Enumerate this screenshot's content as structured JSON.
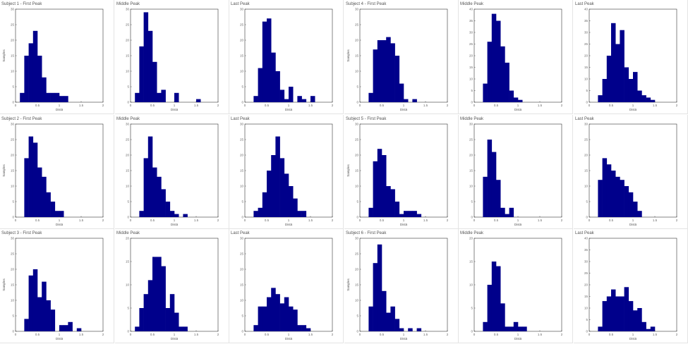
{
  "chart_data": [
    {
      "type": "bar",
      "title": "Subject 1 - First Peak",
      "xlabel": "Distä",
      "ylabel": "Samples",
      "xlim": [
        0,
        2
      ],
      "ylim": [
        0,
        30
      ],
      "xticks": [
        "0",
        "0.5",
        "1",
        "1.5",
        "2"
      ],
      "yticks": [
        "0",
        "5",
        "10",
        "15",
        "20",
        "25",
        "30"
      ],
      "bin_start": 0.1,
      "bin_width": 0.1,
      "values": [
        3,
        15,
        19,
        23,
        15,
        8,
        3,
        3,
        3,
        2,
        2
      ]
    },
    {
      "type": "bar",
      "title": "Middle Peak",
      "xlabel": "Distä",
      "ylabel": "",
      "xlim": [
        0,
        2
      ],
      "ylim": [
        0,
        30
      ],
      "xticks": [
        "0",
        "0.5",
        "1",
        "1.5",
        "2"
      ],
      "yticks": [
        "0",
        "5",
        "10",
        "15",
        "20",
        "25",
        "30"
      ],
      "bin_start": 0.1,
      "bin_width": 0.1,
      "values": [
        3,
        18,
        29,
        23,
        13,
        3,
        4,
        0,
        0,
        3,
        0,
        0,
        0,
        0,
        1
      ]
    },
    {
      "type": "bar",
      "title": "Last Peak",
      "xlabel": "Distä",
      "ylabel": "",
      "xlim": [
        0,
        2
      ],
      "ylim": [
        0,
        30
      ],
      "xticks": [
        "0",
        "0.5",
        "1",
        "1.5",
        "2"
      ],
      "yticks": [
        "0",
        "5",
        "10",
        "15",
        "20",
        "25",
        "30"
      ],
      "bin_start": 0.2,
      "bin_width": 0.1,
      "values": [
        2,
        11,
        26,
        27,
        16,
        10,
        4,
        1,
        5,
        0,
        2,
        1,
        0,
        2
      ]
    },
    {
      "type": "bar",
      "title": "Subject 4 - First Peak",
      "xlabel": "Distä",
      "ylabel": "Samples",
      "xlim": [
        0,
        2
      ],
      "ylim": [
        0,
        30
      ],
      "xticks": [
        "0",
        "0.5",
        "1",
        "1.5",
        "2"
      ],
      "yticks": [
        "0",
        "5",
        "10",
        "15",
        "20",
        "25",
        "30"
      ],
      "bin_start": 0.2,
      "bin_width": 0.1,
      "values": [
        3,
        17,
        20,
        20,
        21,
        19,
        15,
        6,
        1,
        0,
        1
      ]
    },
    {
      "type": "bar",
      "title": "Middle Peak",
      "xlabel": "Distä",
      "ylabel": "",
      "xlim": [
        0,
        2
      ],
      "ylim": [
        0,
        40
      ],
      "xticks": [
        "0",
        "0.5",
        "1",
        "1.5",
        "2"
      ],
      "yticks": [
        "0",
        "5",
        "10",
        "15",
        "20",
        "25",
        "30",
        "35",
        "40"
      ],
      "bin_start": 0.2,
      "bin_width": 0.1,
      "values": [
        8,
        26,
        38,
        35,
        24,
        17,
        5,
        2,
        1
      ]
    },
    {
      "type": "bar",
      "title": "Last Peak",
      "xlabel": "Distä",
      "ylabel": "",
      "xlim": [
        0,
        2
      ],
      "ylim": [
        0,
        40
      ],
      "xticks": [
        "0",
        "0.5",
        "1",
        "1.5",
        "2"
      ],
      "yticks": [
        "0",
        "5",
        "10",
        "15",
        "20",
        "25",
        "30",
        "35",
        "40"
      ],
      "bin_start": 0.2,
      "bin_width": 0.1,
      "values": [
        3,
        10,
        20,
        34,
        25,
        31,
        15,
        10,
        13,
        5,
        3,
        2,
        1
      ]
    },
    {
      "type": "bar",
      "title": "Subject 2 - First Peak",
      "xlabel": "Distä",
      "ylabel": "Samples",
      "xlim": [
        0,
        2
      ],
      "ylim": [
        0,
        30
      ],
      "xticks": [
        "0",
        "0.5",
        "1",
        "1.5",
        "2"
      ],
      "yticks": [
        "0",
        "5",
        "10",
        "15",
        "20",
        "25",
        "30"
      ],
      "bin_start": 0.2,
      "bin_width": 0.1,
      "values": [
        19,
        26,
        24,
        16,
        13,
        8,
        5,
        2,
        2
      ]
    },
    {
      "type": "bar",
      "title": "Middle Peak",
      "xlabel": "Distä",
      "ylabel": "",
      "xlim": [
        0,
        2
      ],
      "ylim": [
        0,
        30
      ],
      "xticks": [
        "0",
        "0.5",
        "1",
        "1.5",
        "2"
      ],
      "yticks": [
        "0",
        "5",
        "10",
        "15",
        "20",
        "25",
        "30"
      ],
      "bin_start": 0.2,
      "bin_width": 0.1,
      "values": [
        2,
        19,
        26,
        16,
        13,
        9,
        5,
        2,
        1,
        0,
        1
      ]
    },
    {
      "type": "bar",
      "title": "Last Peak",
      "xlabel": "Distä",
      "ylabel": "",
      "xlim": [
        0,
        2
      ],
      "ylim": [
        0,
        30
      ],
      "xticks": [
        "0",
        "0.5",
        "1",
        "1.5",
        "2"
      ],
      "yticks": [
        "0",
        "5",
        "10",
        "15",
        "20",
        "25",
        "30"
      ],
      "bin_start": 0.2,
      "bin_width": 0.1,
      "values": [
        2,
        3,
        8,
        15,
        20,
        26,
        19,
        14,
        10,
        6,
        2,
        2
      ]
    },
    {
      "type": "bar",
      "title": "Subject 5 - First Peak",
      "xlabel": "Distä",
      "ylabel": "Samples",
      "xlim": [
        0,
        2
      ],
      "ylim": [
        0,
        30
      ],
      "xticks": [
        "0",
        "0.5",
        "1",
        "1.5",
        "2"
      ],
      "yticks": [
        "0",
        "5",
        "10",
        "15",
        "20",
        "25",
        "30"
      ],
      "bin_start": 0.2,
      "bin_width": 0.1,
      "values": [
        3,
        18,
        22,
        20,
        10,
        9,
        5,
        1,
        2,
        2,
        2,
        1
      ]
    },
    {
      "type": "bar",
      "title": "Middle Peak",
      "xlabel": "Distä",
      "ylabel": "",
      "xlim": [
        0,
        2
      ],
      "ylim": [
        0,
        30
      ],
      "xticks": [
        "0",
        "0.5",
        "1",
        "1.5",
        "2"
      ],
      "yticks": [
        "0",
        "5",
        "10",
        "15",
        "20",
        "25",
        "30"
      ],
      "bin_start": 0.2,
      "bin_width": 0.1,
      "values": [
        13,
        25,
        21,
        12,
        3,
        1,
        3
      ]
    },
    {
      "type": "bar",
      "title": "Last Peak",
      "xlabel": "Distä",
      "ylabel": "",
      "xlim": [
        0,
        2
      ],
      "ylim": [
        0,
        30
      ],
      "xticks": [
        "0",
        "0.5",
        "1",
        "1.5",
        "2"
      ],
      "yticks": [
        "0",
        "5",
        "10",
        "15",
        "20",
        "25",
        "30"
      ],
      "bin_start": 0.2,
      "bin_width": 0.1,
      "values": [
        12,
        19,
        17,
        15,
        13,
        12,
        10,
        8,
        5,
        2
      ]
    },
    {
      "type": "bar",
      "title": "Subject 3 - First Peak",
      "xlabel": "Distä",
      "ylabel": "Samples",
      "xlim": [
        0,
        2
      ],
      "ylim": [
        0,
        30
      ],
      "xticks": [
        "0",
        "0.5",
        "1",
        "1.5",
        "2"
      ],
      "yticks": [
        "0",
        "5",
        "10",
        "15",
        "20",
        "25",
        "30"
      ],
      "bin_start": 0.2,
      "bin_width": 0.1,
      "values": [
        4,
        18,
        20,
        11,
        16,
        10,
        7,
        0,
        2,
        2,
        3,
        0,
        1
      ]
    },
    {
      "type": "bar",
      "title": "Middle Peak",
      "xlabel": "Distä",
      "ylabel": "",
      "xlim": [
        0,
        2
      ],
      "ylim": [
        0,
        20
      ],
      "xticks": [
        "0",
        "0.5",
        "1",
        "1.5",
        "2"
      ],
      "yticks": [
        "0",
        "5",
        "10",
        "15",
        "20"
      ],
      "bin_start": 0.1,
      "bin_width": 0.1,
      "values": [
        1,
        5,
        8,
        11,
        16,
        16,
        14,
        5,
        8,
        4,
        1,
        1
      ]
    },
    {
      "type": "bar",
      "title": "Last Peak",
      "xlabel": "Distä",
      "ylabel": "",
      "xlim": [
        0,
        2
      ],
      "ylim": [
        0,
        30
      ],
      "xticks": [
        "0",
        "0.5",
        "1",
        "1.5",
        "2"
      ],
      "yticks": [
        "0",
        "5",
        "10",
        "15",
        "20",
        "25",
        "30"
      ],
      "bin_start": 0.2,
      "bin_width": 0.1,
      "values": [
        2,
        8,
        8,
        11,
        14,
        12,
        9,
        11,
        8,
        7,
        2,
        2,
        1
      ]
    },
    {
      "type": "bar",
      "title": "Subject 6 - First Peak",
      "xlabel": "Distä",
      "ylabel": "Samples",
      "xlim": [
        0,
        2
      ],
      "ylim": [
        0,
        30
      ],
      "xticks": [
        "0",
        "0.5",
        "1",
        "1.5",
        "2"
      ],
      "yticks": [
        "0",
        "5",
        "10",
        "15",
        "20",
        "25",
        "30"
      ],
      "bin_start": 0.2,
      "bin_width": 0.1,
      "values": [
        8,
        22,
        28,
        13,
        6,
        8,
        4,
        1,
        0,
        1,
        0,
        1
      ]
    },
    {
      "type": "bar",
      "title": "Middle Peak",
      "xlabel": "Distä",
      "ylabel": "",
      "xlim": [
        0,
        2
      ],
      "ylim": [
        0,
        20
      ],
      "xticks": [
        "0",
        "0.5",
        "1",
        "1.5",
        "2"
      ],
      "yticks": [
        "0",
        "5",
        "10",
        "15",
        "20"
      ],
      "bin_start": 0.2,
      "bin_width": 0.1,
      "values": [
        2,
        10,
        15,
        14,
        6,
        1,
        1,
        2,
        1,
        1
      ]
    },
    {
      "type": "bar",
      "title": "Last Peak",
      "xlabel": "Distä",
      "ylabel": "",
      "xlim": [
        0,
        2
      ],
      "ylim": [
        0,
        40
      ],
      "xticks": [
        "0",
        "0.5",
        "1",
        "1.5",
        "2"
      ],
      "yticks": [
        "0",
        "5",
        "10",
        "15",
        "20",
        "25",
        "30",
        "35",
        "40"
      ],
      "bin_start": 0.2,
      "bin_width": 0.1,
      "values": [
        2,
        13,
        15,
        18,
        15,
        15,
        19,
        13,
        9,
        10,
        4,
        1,
        2
      ]
    }
  ]
}
